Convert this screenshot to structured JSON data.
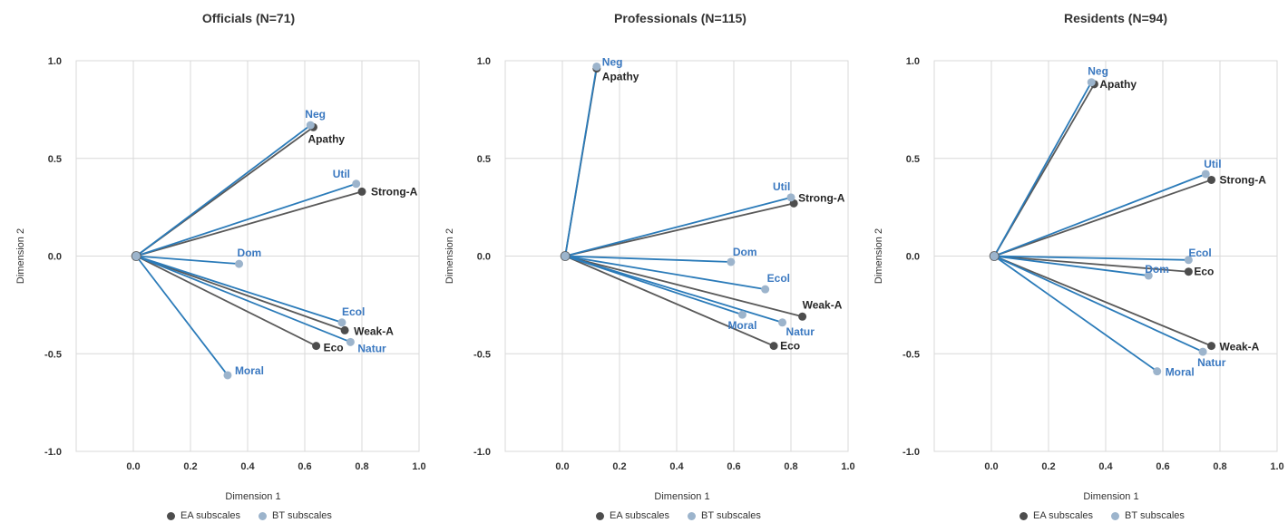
{
  "legend": {
    "ea_label": "EA subscales",
    "bt_label": "BT subscales"
  },
  "colors": {
    "ea_point": "#4d4d4d",
    "bt_point": "#9cb4cc",
    "ea_line": "#595959",
    "bt_line": "#2b7bb9",
    "bt_text": "#3a78c0",
    "ea_text": "#262626",
    "grid": "#d9d9d9"
  },
  "chart_data": [
    {
      "type": "scatter",
      "title": "Officials (N=71)",
      "xlabel": "Dimension 1",
      "ylabel": "Dimension 2",
      "xlim": [
        -0.2,
        1.0
      ],
      "ylim": [
        -1.0,
        1.0
      ],
      "xticks": [
        "0.0",
        "0.2",
        "0.4",
        "0.6",
        "0.8",
        "1.0"
      ],
      "yticks": [
        "1.0",
        "0.5",
        "0.0",
        "-0.5",
        "-1.0"
      ],
      "origin": [
        0.01,
        0.0
      ],
      "series": [
        {
          "name": "EA subscales",
          "points": [
            {
              "label": "Apathy",
              "x": 0.63,
              "y": 0.66
            },
            {
              "label": "Strong-A",
              "x": 0.8,
              "y": 0.33
            },
            {
              "label": "Weak-A",
              "x": 0.74,
              "y": -0.38
            },
            {
              "label": "Eco",
              "x": 0.64,
              "y": -0.46
            }
          ]
        },
        {
          "name": "BT subscales",
          "points": [
            {
              "label": "Neg",
              "x": 0.62,
              "y": 0.67
            },
            {
              "label": "Util",
              "x": 0.78,
              "y": 0.37
            },
            {
              "label": "Dom",
              "x": 0.37,
              "y": -0.04
            },
            {
              "label": "Ecol",
              "x": 0.73,
              "y": -0.34
            },
            {
              "label": "Natur",
              "x": 0.76,
              "y": -0.44
            },
            {
              "label": "Moral",
              "x": 0.33,
              "y": -0.61
            }
          ]
        }
      ]
    },
    {
      "type": "scatter",
      "title": "Professionals (N=115)",
      "xlabel": "Dimension 1",
      "ylabel": "Dimension 2",
      "xlim": [
        -0.2,
        1.0
      ],
      "ylim": [
        -1.0,
        1.0
      ],
      "xticks": [
        "0.0",
        "0.2",
        "0.4",
        "0.6",
        "0.8",
        "1.0"
      ],
      "yticks": [
        "1.0",
        "0.5",
        "0.0",
        "-0.5",
        "-1.0"
      ],
      "origin": [
        0.01,
        0.0
      ],
      "series": [
        {
          "name": "EA subscales",
          "points": [
            {
              "label": "Apathy",
              "x": 0.12,
              "y": 0.96
            },
            {
              "label": "Strong-A",
              "x": 0.81,
              "y": 0.27
            },
            {
              "label": "Weak-A",
              "x": 0.84,
              "y": -0.31
            },
            {
              "label": "Eco",
              "x": 0.74,
              "y": -0.46
            }
          ]
        },
        {
          "name": "BT subscales",
          "points": [
            {
              "label": "Neg",
              "x": 0.12,
              "y": 0.97
            },
            {
              "label": "Util",
              "x": 0.8,
              "y": 0.3
            },
            {
              "label": "Dom",
              "x": 0.59,
              "y": -0.03
            },
            {
              "label": "Ecol",
              "x": 0.71,
              "y": -0.17
            },
            {
              "label": "Moral",
              "x": 0.63,
              "y": -0.3
            },
            {
              "label": "Natur",
              "x": 0.77,
              "y": -0.34
            }
          ]
        }
      ]
    },
    {
      "type": "scatter",
      "title": "Residents (N=94)",
      "xlabel": "Dimension 1",
      "ylabel": "Dimension 2",
      "xlim": [
        -0.2,
        1.0
      ],
      "ylim": [
        -1.0,
        1.0
      ],
      "xticks": [
        "0.0",
        "0.2",
        "0.4",
        "0.6",
        "0.8",
        "1.0"
      ],
      "yticks": [
        "1.0",
        "0.5",
        "0.0",
        "-0.5",
        "-1.0"
      ],
      "origin": [
        0.01,
        0.0
      ],
      "series": [
        {
          "name": "EA subscales",
          "points": [
            {
              "label": "Apathy",
              "x": 0.36,
              "y": 0.88
            },
            {
              "label": "Strong-A",
              "x": 0.77,
              "y": 0.39
            },
            {
              "label": "Eco",
              "x": 0.69,
              "y": -0.08
            },
            {
              "label": "Weak-A",
              "x": 0.77,
              "y": -0.46
            }
          ]
        },
        {
          "name": "BT subscales",
          "points": [
            {
              "label": "Neg",
              "x": 0.35,
              "y": 0.89
            },
            {
              "label": "Util",
              "x": 0.75,
              "y": 0.42
            },
            {
              "label": "Ecol",
              "x": 0.69,
              "y": -0.02
            },
            {
              "label": "Dom",
              "x": 0.55,
              "y": -0.1
            },
            {
              "label": "Natur",
              "x": 0.74,
              "y": -0.49
            },
            {
              "label": "Moral",
              "x": 0.58,
              "y": -0.59
            }
          ]
        }
      ]
    }
  ]
}
